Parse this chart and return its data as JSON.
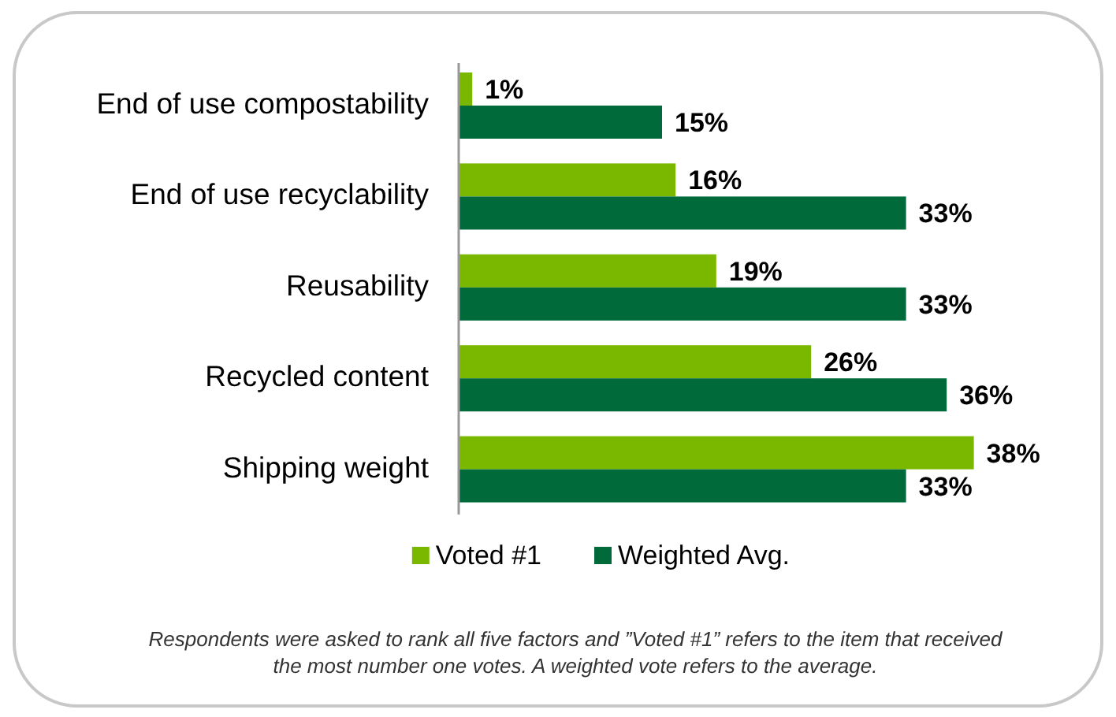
{
  "chart_data": {
    "type": "bar",
    "orientation": "horizontal",
    "categories": [
      "End of use compostability",
      "End of use recyclability",
      "Reusability",
      "Recycled content",
      "Shipping weight"
    ],
    "series": [
      {
        "name": "Voted #1",
        "color": "#7ab800",
        "values": [
          1,
          16,
          19,
          26,
          38
        ],
        "value_labels": [
          "1%",
          "16%",
          "19%",
          "26%",
          "38%"
        ]
      },
      {
        "name": "Weighted Avg.",
        "color": "#006a3b",
        "values": [
          15,
          33,
          33,
          36,
          33
        ],
        "value_labels": [
          "15%",
          "33%",
          "33%",
          "36%",
          "33%"
        ]
      }
    ],
    "legend": "bottom",
    "annotations": [
      "Respondents were asked to rank all five factors and ”Voted #1” refers to the item that received the most number one votes.  A weighted vote refers to the average."
    ]
  }
}
